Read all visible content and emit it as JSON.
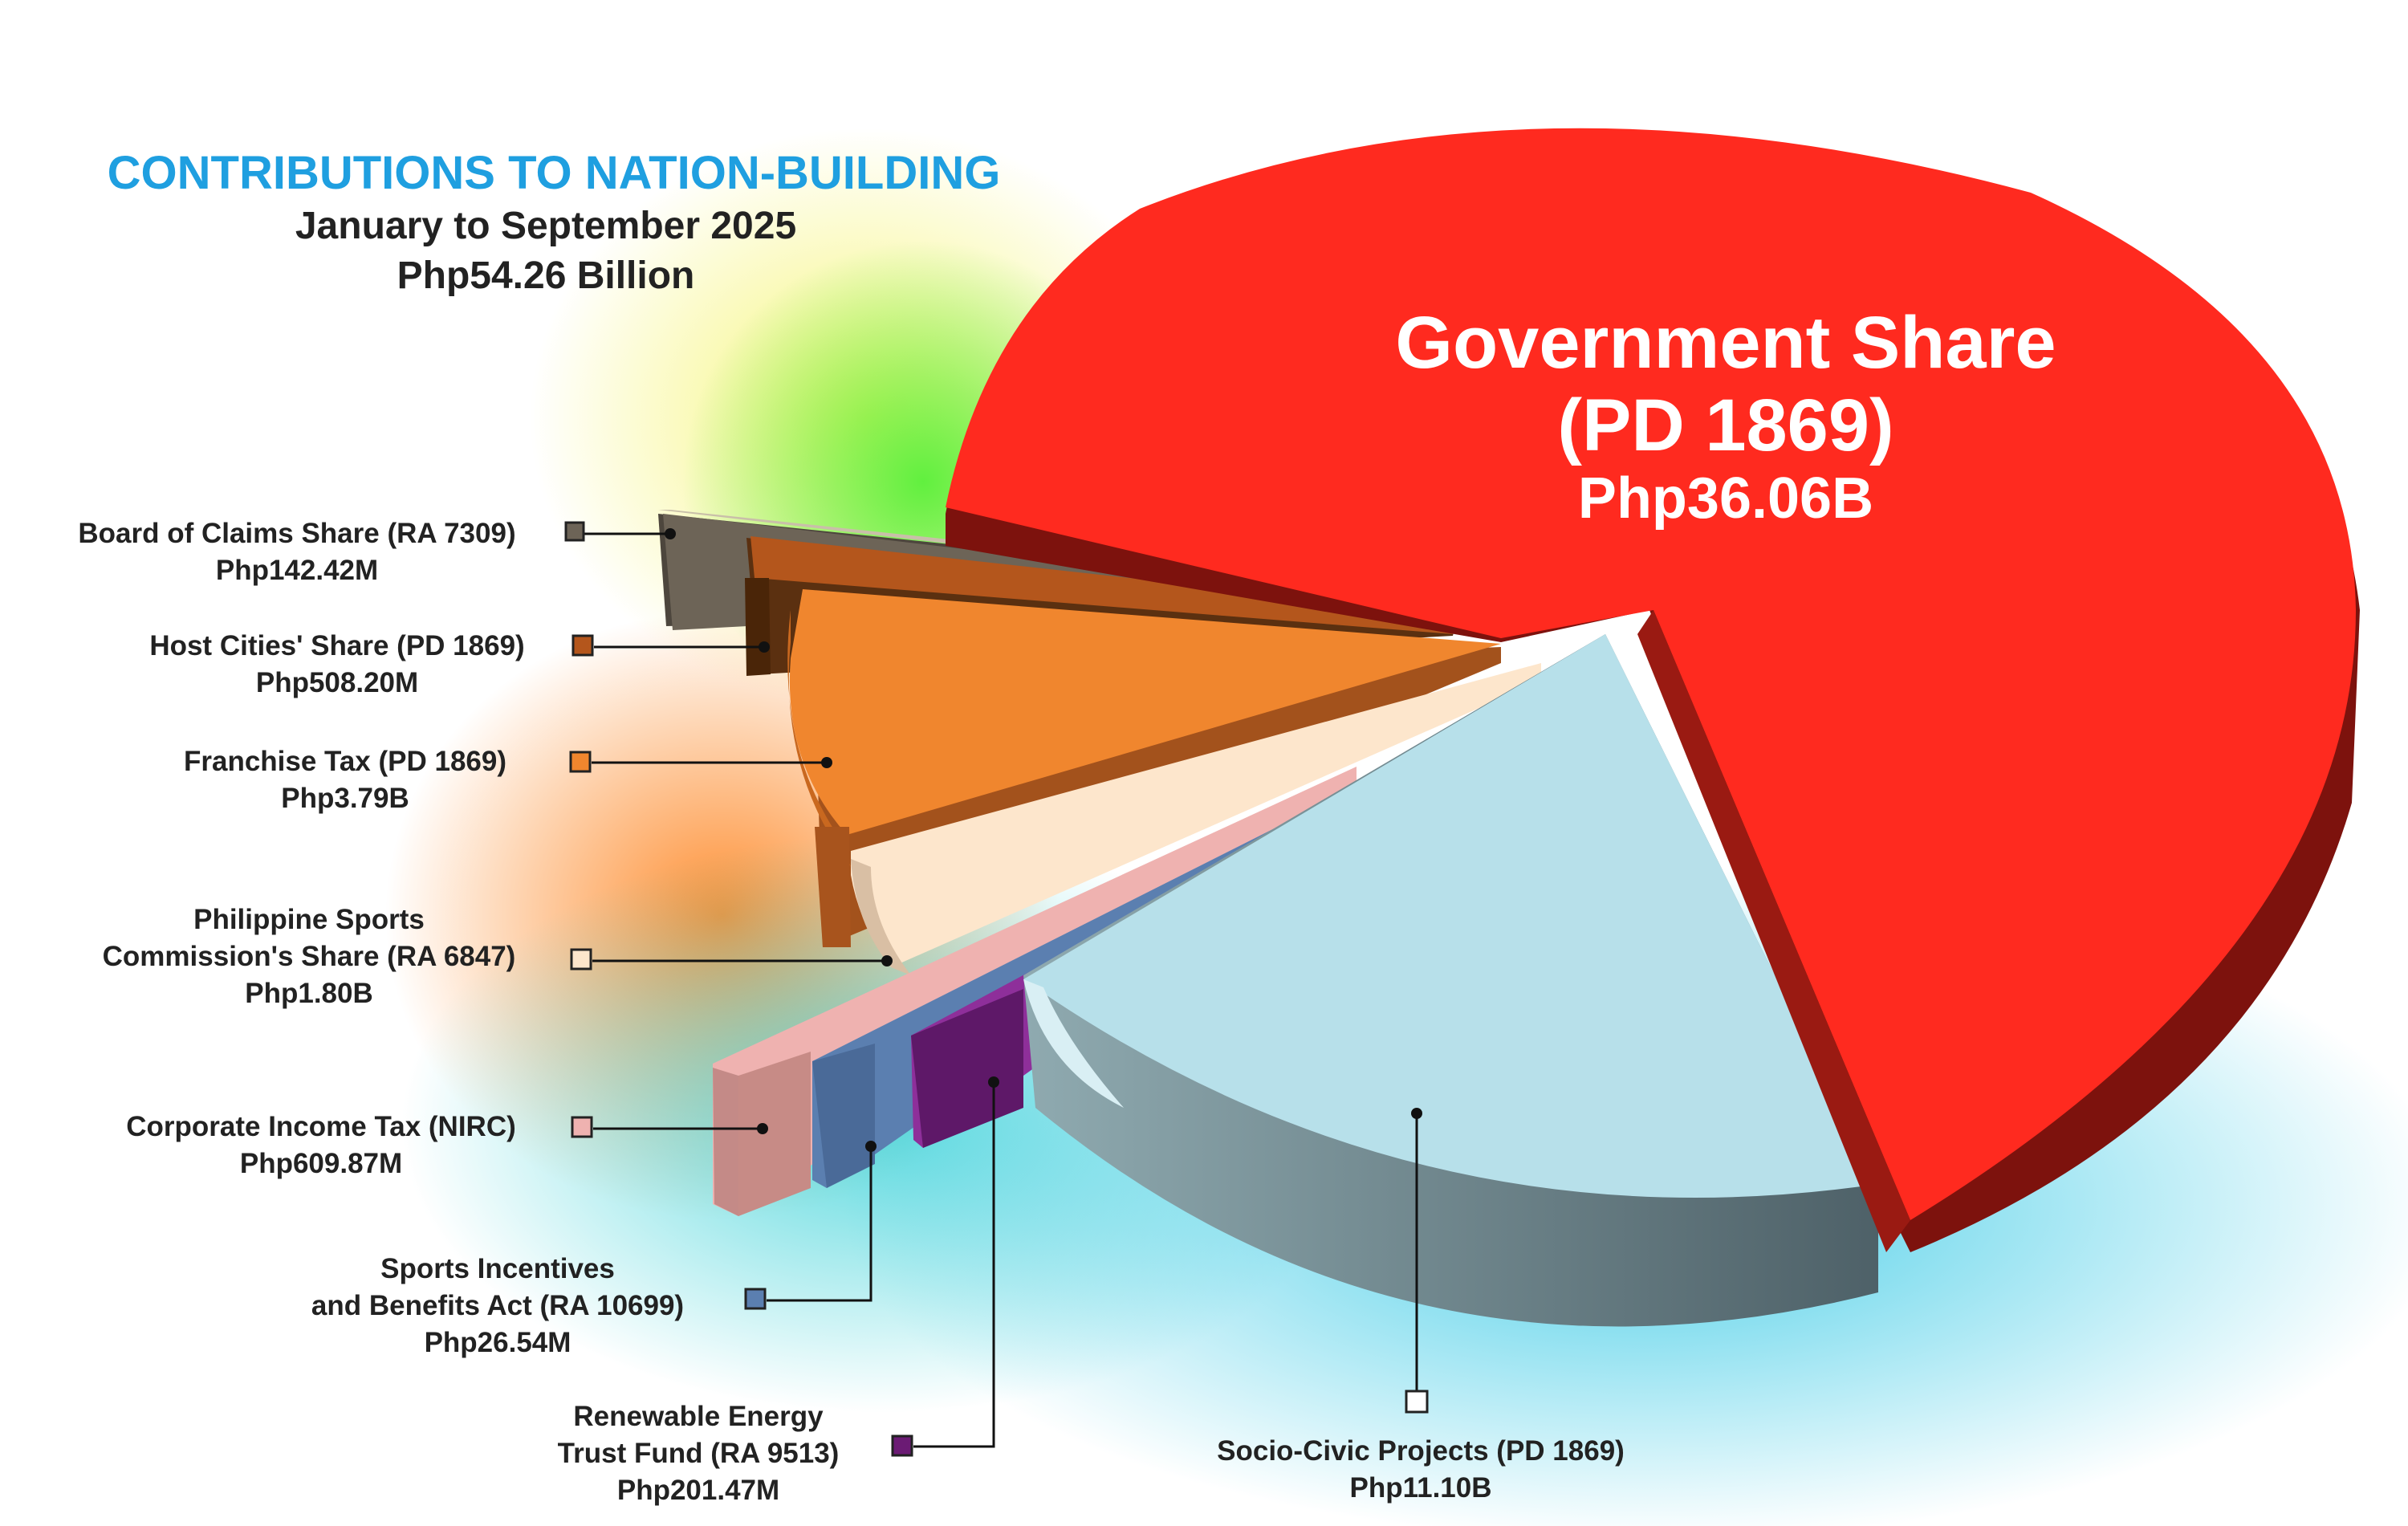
{
  "header": {
    "title": "CONTRIBUTIONS TO NATION-BUILDING",
    "period": "January to September 2025",
    "total": "Php54.26 Billion"
  },
  "colors": {
    "title": "#1f9fe0",
    "text": "#222222"
  },
  "chart_data": {
    "type": "pie",
    "title": "CONTRIBUTIONS TO NATION-BUILDING",
    "subtitle": "January to September 2025",
    "total_label": "Php54.26 Billion",
    "slices": [
      {
        "name_line1": "Government Share",
        "name_line2": "(PD 1869)",
        "value_label": "Php36.06B",
        "value": 36.06,
        "color": "#ff2a1f"
      },
      {
        "name_line1": "Socio-Civic Projects (PD 1869)",
        "name_line2": "",
        "value_label": "Php11.10B",
        "value": 11.1,
        "color": "#b7e0ea"
      },
      {
        "name_line1": "Renewable Energy",
        "name_line2": "Trust Fund (RA 9513)",
        "value_label": "Php201.47M",
        "value": 0.20147,
        "color": "#6b1b74"
      },
      {
        "name_line1": "Sports Incentives",
        "name_line2": "and Benefits Act (RA 10699)",
        "value_label": "Php26.54M",
        "value": 0.02654,
        "color": "#5b7fb0"
      },
      {
        "name_line1": "Corporate Income Tax (NIRC)",
        "name_line2": "",
        "value_label": "Php609.87M",
        "value": 0.60987,
        "color": "#efb2b0"
      },
      {
        "name_line1": "Philippine Sports",
        "name_line2": "Commission's Share (RA 6847)",
        "value_label": "Php1.80B",
        "value": 1.8,
        "color": "#fde6cc"
      },
      {
        "name_line1": "Franchise Tax (PD 1869)",
        "name_line2": "",
        "value_label": "Php3.79B",
        "value": 3.79,
        "color": "#f0862e"
      },
      {
        "name_line1": "Host Cities' Share (PD 1869)",
        "name_line2": "",
        "value_label": "Php508.20M",
        "value": 0.5082,
        "color": "#b4561c"
      },
      {
        "name_line1": "Board of Claims Share (RA 7309)",
        "name_line2": "",
        "value_label": "Php142.42M",
        "value": 0.14242,
        "color": "#6d6457"
      }
    ]
  }
}
